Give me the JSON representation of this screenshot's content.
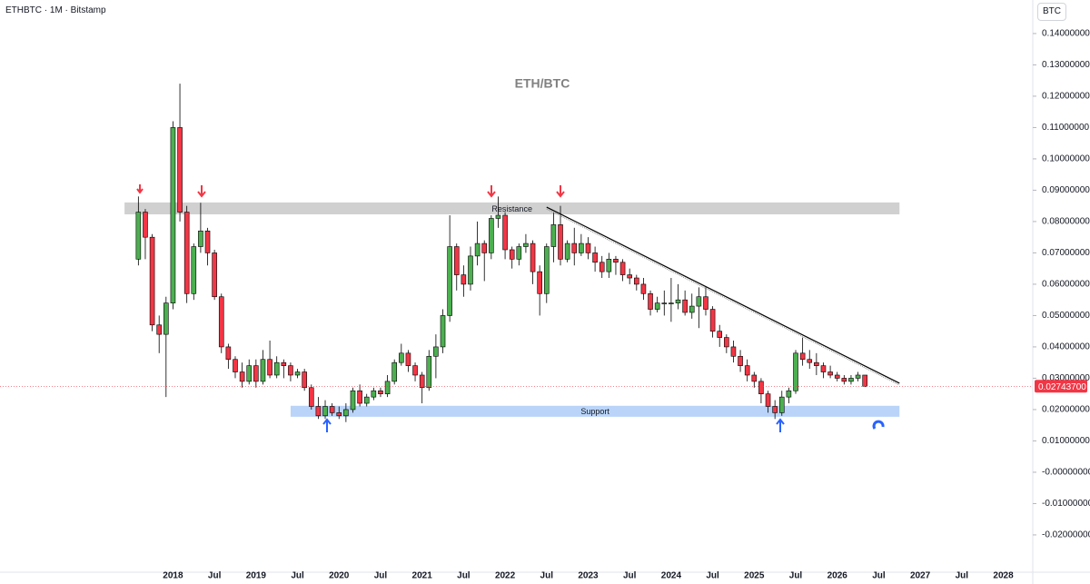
{
  "header": {
    "symbol": "ETHBTC · 1M · Bitstamp",
    "currency_button": "BTC"
  },
  "chart_data": {
    "type": "candlestick",
    "title": "ETH/BTC",
    "x": [
      "2017-08",
      "2017-09",
      "2017-10",
      "2017-11",
      "2017-12",
      "2018-01",
      "2018-02",
      "2018-03",
      "2018-04",
      "2018-05",
      "2018-06",
      "2018-07",
      "2018-08",
      "2018-09",
      "2018-10",
      "2018-11",
      "2018-12",
      "2019-01",
      "2019-02",
      "2019-03",
      "2019-04",
      "2019-05",
      "2019-06",
      "2019-07",
      "2019-08",
      "2019-09",
      "2019-10",
      "2019-11",
      "2019-12",
      "2020-01",
      "2020-02",
      "2020-03",
      "2020-04",
      "2020-05",
      "2020-06",
      "2020-07",
      "2020-08",
      "2020-09",
      "2020-10",
      "2020-11",
      "2020-12",
      "2021-01",
      "2021-02",
      "2021-03",
      "2021-04",
      "2021-05",
      "2021-06",
      "2021-07",
      "2021-08",
      "2021-09",
      "2021-10",
      "2021-11",
      "2021-12",
      "2022-01",
      "2022-02",
      "2022-03",
      "2022-04",
      "2022-05",
      "2022-06",
      "2022-07",
      "2022-08",
      "2022-09",
      "2022-10",
      "2022-11",
      "2022-12",
      "2023-01",
      "2023-02",
      "2023-03",
      "2023-04",
      "2023-05",
      "2023-06",
      "2023-07",
      "2023-08",
      "2023-09",
      "2023-10",
      "2023-11",
      "2023-12",
      "2024-01",
      "2024-02",
      "2024-03",
      "2024-04",
      "2024-05",
      "2024-06",
      "2024-07",
      "2024-08",
      "2024-09",
      "2024-10",
      "2024-11",
      "2024-12",
      "2025-01",
      "2025-02",
      "2025-03",
      "2025-04",
      "2025-05",
      "2025-06",
      "2025-07",
      "2025-08",
      "2025-09",
      "2025-10",
      "2025-11",
      "2025-12",
      "2026-01",
      "2026-02",
      "2026-03",
      "2026-04",
      "2026-05"
    ],
    "open": [
      0.068,
      0.083,
      0.075,
      0.047,
      0.044,
      0.054,
      0.11,
      0.083,
      0.057,
      0.072,
      0.077,
      0.07,
      0.056,
      0.04,
      0.036,
      0.032,
      0.029,
      0.034,
      0.029,
      0.036,
      0.031,
      0.035,
      0.034,
      0.031,
      0.032,
      0.027,
      0.021,
      0.018,
      0.021,
      0.019,
      0.018,
      0.02,
      0.026,
      0.022,
      0.024,
      0.026,
      0.025,
      0.029,
      0.035,
      0.038,
      0.034,
      0.031,
      0.027,
      0.037,
      0.04,
      0.05,
      0.072,
      0.063,
      0.06,
      0.069,
      0.073,
      0.07,
      0.081,
      0.082,
      0.071,
      0.068,
      0.072,
      0.073,
      0.064,
      0.057,
      0.072,
      0.079,
      0.068,
      0.073,
      0.07,
      0.073,
      0.07,
      0.067,
      0.064,
      0.068,
      0.067,
      0.063,
      0.062,
      0.06,
      0.057,
      0.052,
      0.054,
      0.054,
      0.054,
      0.055,
      0.051,
      0.053,
      0.056,
      0.052,
      0.045,
      0.043,
      0.04,
      0.037,
      0.034,
      0.031,
      0.029,
      0.025,
      0.021,
      0.019,
      0.024,
      0.026,
      0.038,
      0.036,
      0.035,
      0.034,
      0.032,
      0.031,
      0.03,
      0.029,
      0.03,
      0.031
    ],
    "high": [
      0.088,
      0.084,
      0.076,
      0.05,
      0.056,
      0.112,
      0.124,
      0.085,
      0.073,
      0.086,
      0.078,
      0.071,
      0.057,
      0.041,
      0.037,
      0.035,
      0.036,
      0.036,
      0.039,
      0.042,
      0.037,
      0.036,
      0.035,
      0.033,
      0.033,
      0.028,
      0.024,
      0.023,
      0.022,
      0.021,
      0.022,
      0.027,
      0.028,
      0.025,
      0.027,
      0.027,
      0.031,
      0.036,
      0.041,
      0.039,
      0.035,
      0.032,
      0.039,
      0.044,
      0.052,
      0.082,
      0.073,
      0.066,
      0.072,
      0.08,
      0.074,
      0.082,
      0.088,
      0.083,
      0.072,
      0.073,
      0.076,
      0.074,
      0.066,
      0.073,
      0.083,
      0.085,
      0.074,
      0.078,
      0.076,
      0.075,
      0.072,
      0.069,
      0.07,
      0.069,
      0.068,
      0.065,
      0.063,
      0.062,
      0.058,
      0.056,
      0.058,
      0.062,
      0.06,
      0.058,
      0.057,
      0.059,
      0.059,
      0.053,
      0.047,
      0.044,
      0.042,
      0.039,
      0.036,
      0.032,
      0.03,
      0.026,
      0.023,
      0.026,
      0.027,
      0.039,
      0.043,
      0.039,
      0.038,
      0.035,
      0.034,
      0.032,
      0.031,
      0.031,
      0.032,
      0.031
    ],
    "low": [
      0.066,
      0.068,
      0.045,
      0.038,
      0.024,
      0.052,
      0.08,
      0.054,
      0.055,
      0.07,
      0.066,
      0.055,
      0.038,
      0.033,
      0.03,
      0.027,
      0.028,
      0.027,
      0.028,
      0.03,
      0.03,
      0.03,
      0.029,
      0.03,
      0.026,
      0.02,
      0.017,
      0.017,
      0.018,
      0.017,
      0.016,
      0.019,
      0.021,
      0.021,
      0.023,
      0.024,
      0.024,
      0.028,
      0.034,
      0.032,
      0.029,
      0.022,
      0.026,
      0.03,
      0.038,
      0.048,
      0.058,
      0.056,
      0.058,
      0.066,
      0.061,
      0.068,
      0.078,
      0.068,
      0.065,
      0.066,
      0.07,
      0.06,
      0.05,
      0.054,
      0.067,
      0.066,
      0.067,
      0.066,
      0.069,
      0.068,
      0.064,
      0.062,
      0.062,
      0.063,
      0.061,
      0.06,
      0.058,
      0.055,
      0.05,
      0.051,
      0.05,
      0.048,
      0.052,
      0.05,
      0.049,
      0.046,
      0.05,
      0.043,
      0.04,
      0.038,
      0.035,
      0.032,
      0.029,
      0.027,
      0.022,
      0.019,
      0.017,
      0.018,
      0.022,
      0.025,
      0.034,
      0.033,
      0.031,
      0.03,
      0.03,
      0.029,
      0.028,
      0.028,
      0.029,
      0.0272
    ],
    "close": [
      0.083,
      0.075,
      0.047,
      0.044,
      0.054,
      0.11,
      0.083,
      0.057,
      0.072,
      0.077,
      0.07,
      0.056,
      0.04,
      0.036,
      0.032,
      0.029,
      0.034,
      0.029,
      0.036,
      0.031,
      0.035,
      0.034,
      0.031,
      0.032,
      0.027,
      0.021,
      0.018,
      0.021,
      0.019,
      0.018,
      0.02,
      0.026,
      0.022,
      0.024,
      0.026,
      0.025,
      0.029,
      0.035,
      0.038,
      0.034,
      0.031,
      0.027,
      0.037,
      0.04,
      0.05,
      0.072,
      0.063,
      0.06,
      0.069,
      0.073,
      0.07,
      0.081,
      0.082,
      0.071,
      0.068,
      0.072,
      0.073,
      0.064,
      0.057,
      0.072,
      0.079,
      0.068,
      0.073,
      0.07,
      0.073,
      0.07,
      0.067,
      0.064,
      0.068,
      0.067,
      0.063,
      0.062,
      0.06,
      0.057,
      0.052,
      0.054,
      0.054,
      0.054,
      0.055,
      0.051,
      0.053,
      0.056,
      0.052,
      0.045,
      0.043,
      0.04,
      0.037,
      0.034,
      0.031,
      0.029,
      0.025,
      0.021,
      0.019,
      0.024,
      0.026,
      0.038,
      0.036,
      0.035,
      0.034,
      0.032,
      0.031,
      0.03,
      0.029,
      0.03,
      0.031,
      0.027437
    ],
    "up_color": "#4caf50",
    "down_color": "#f23645",
    "xlim": [
      "2015-12",
      "2028-05"
    ],
    "xticks": [
      {
        "value": "2018-01",
        "label": "2018"
      },
      {
        "value": "2018-07",
        "label": "Jul"
      },
      {
        "value": "2019-01",
        "label": "2019"
      },
      {
        "value": "2019-07",
        "label": "Jul"
      },
      {
        "value": "2020-01",
        "label": "2020"
      },
      {
        "value": "2020-07",
        "label": "Jul"
      },
      {
        "value": "2021-01",
        "label": "2021"
      },
      {
        "value": "2021-07",
        "label": "Jul"
      },
      {
        "value": "2022-01",
        "label": "2022"
      },
      {
        "value": "2022-07",
        "label": "Jul"
      },
      {
        "value": "2023-01",
        "label": "2023"
      },
      {
        "value": "2023-07",
        "label": "Jul"
      },
      {
        "value": "2024-01",
        "label": "2024"
      },
      {
        "value": "2024-07",
        "label": "Jul"
      },
      {
        "value": "2025-01",
        "label": "2025"
      },
      {
        "value": "2025-07",
        "label": "Jul"
      },
      {
        "value": "2026-01",
        "label": "2026"
      },
      {
        "value": "2026-07",
        "label": "Jul"
      },
      {
        "value": "2027-01",
        "label": "2027"
      },
      {
        "value": "2027-07",
        "label": "Jul"
      },
      {
        "value": "2028-01",
        "label": "2028"
      }
    ],
    "ylim": [
      -0.0319,
      0.1507
    ],
    "yticks": [
      {
        "value": 0.14,
        "label": "0.14000000"
      },
      {
        "value": 0.13,
        "label": "0.13000000"
      },
      {
        "value": 0.12,
        "label": "0.12000000"
      },
      {
        "value": 0.11,
        "label": "0.11000000"
      },
      {
        "value": 0.1,
        "label": "0.10000000"
      },
      {
        "value": 0.09,
        "label": "0.09000000"
      },
      {
        "value": 0.08,
        "label": "0.08000000"
      },
      {
        "value": 0.07,
        "label": "0.07000000"
      },
      {
        "value": 0.06,
        "label": "0.06000000"
      },
      {
        "value": 0.05,
        "label": "0.05000000"
      },
      {
        "value": 0.04,
        "label": "0.04000000"
      },
      {
        "value": 0.03,
        "label": "0.03000000"
      },
      {
        "value": 0.02,
        "label": "0.02000000"
      },
      {
        "value": 0.01,
        "label": "0.01000000"
      },
      {
        "value": 0,
        "label": "-0.00000000"
      },
      {
        "value": -0.01,
        "label": "-0.01000000"
      },
      {
        "value": -0.02,
        "label": "-0.02000000"
      }
    ],
    "grid": false,
    "last_price": {
      "value": 0.027437,
      "label": "0.02743700"
    },
    "resistance": {
      "label": "Resistance",
      "low": 0.0823,
      "high": 0.0861,
      "from": "2017-06",
      "to": "2026-10"
    },
    "support": {
      "label": "Support",
      "low": 0.0177,
      "high": 0.0212,
      "from": "2019-06",
      "to": "2026-10"
    },
    "trendline": {
      "from": [
        "2022-07",
        0.0846
      ],
      "to": [
        "2026-10",
        0.0284
      ]
    }
  }
}
